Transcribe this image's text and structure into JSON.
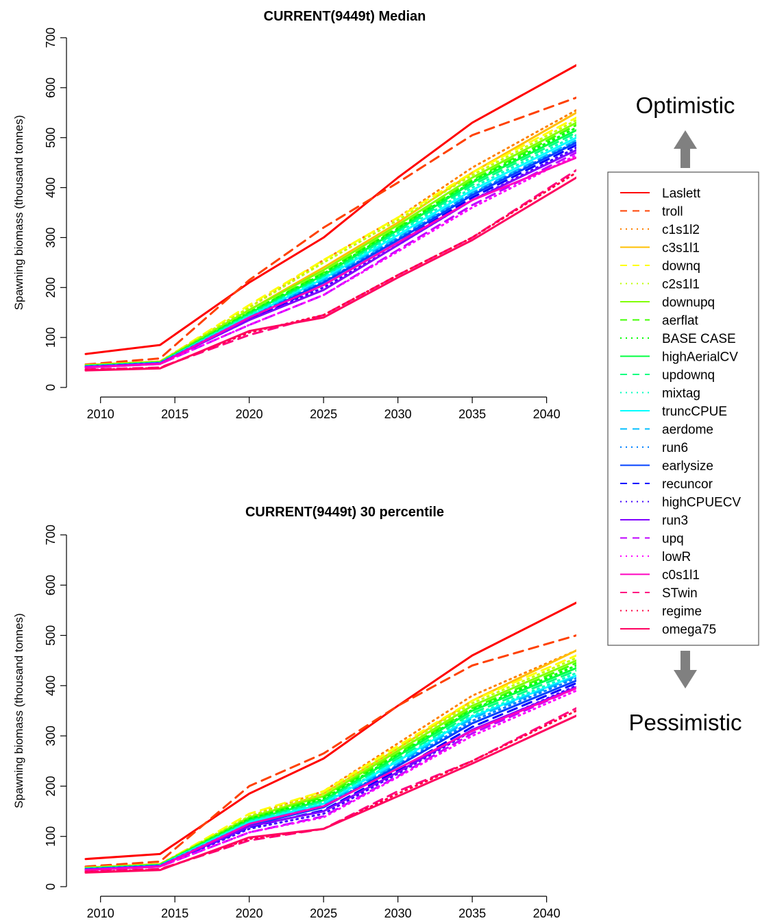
{
  "annotations": {
    "top": "Optimistic",
    "bottom": "Pessimistic"
  },
  "legend": {
    "position": "right",
    "entries": [
      {
        "name": "Laslett",
        "color": "#ff0000",
        "dash": "solid"
      },
      {
        "name": "troll",
        "color": "#ff4000",
        "dash": "dashed"
      },
      {
        "name": "c1s1l2",
        "color": "#ff8000",
        "dash": "dotted"
      },
      {
        "name": "c3s1l1",
        "color": "#ffbf00",
        "dash": "solid"
      },
      {
        "name": "downq",
        "color": "#ffff00",
        "dash": "dashed"
      },
      {
        "name": "c2s1l1",
        "color": "#bfff00",
        "dash": "dotted"
      },
      {
        "name": "downupq",
        "color": "#80ff00",
        "dash": "solid"
      },
      {
        "name": "aerflat",
        "color": "#40ff00",
        "dash": "dashed"
      },
      {
        "name": "BASE CASE",
        "color": "#00ff00",
        "dash": "dotted"
      },
      {
        "name": "highAerialCV",
        "color": "#00ff40",
        "dash": "solid"
      },
      {
        "name": "updownq",
        "color": "#00ff80",
        "dash": "dashed"
      },
      {
        "name": "mixtag",
        "color": "#00ffbf",
        "dash": "dotted"
      },
      {
        "name": "truncCPUE",
        "color": "#00ffff",
        "dash": "solid"
      },
      {
        "name": "aerdome",
        "color": "#00bfff",
        "dash": "dashed"
      },
      {
        "name": "run6",
        "color": "#0080ff",
        "dash": "dotted"
      },
      {
        "name": "earlysize",
        "color": "#0040ff",
        "dash": "solid"
      },
      {
        "name": "recuncor",
        "color": "#0000ff",
        "dash": "dashed"
      },
      {
        "name": "highCPUECV",
        "color": "#4000ff",
        "dash": "dotted"
      },
      {
        "name": "run3",
        "color": "#8000ff",
        "dash": "solid"
      },
      {
        "name": "upq",
        "color": "#bf00ff",
        "dash": "dashed"
      },
      {
        "name": "lowR",
        "color": "#ff00ff",
        "dash": "dotted"
      },
      {
        "name": "c0s1l1",
        "color": "#ff00bf",
        "dash": "solid"
      },
      {
        "name": "STwin",
        "color": "#ff0080",
        "dash": "dashed"
      },
      {
        "name": "regime",
        "color": "#ff0040",
        "dash": "dotted"
      },
      {
        "name": "omega75",
        "color": "#ff0060",
        "dash": "solid"
      }
    ]
  },
  "chart_data": [
    {
      "type": "line",
      "title": "CURRENT(9449t) Median",
      "xlabel": "",
      "ylabel": "Spawning biomass (thousand tonnes)",
      "xlim": [
        2009,
        2042
      ],
      "ylim": [
        0,
        700
      ],
      "xticks": [
        2010,
        2015,
        2020,
        2025,
        2030,
        2035,
        2040
      ],
      "yticks": [
        0,
        100,
        200,
        300,
        400,
        500,
        600,
        700
      ],
      "grid": false,
      "x": [
        2009,
        2014,
        2020,
        2025,
        2030,
        2035,
        2042
      ],
      "series": [
        {
          "name": "Laslett",
          "values": [
            67,
            85,
            210,
            300,
            420,
            530,
            645
          ]
        },
        {
          "name": "troll",
          "values": [
            46,
            58,
            215,
            320,
            410,
            505,
            580
          ]
        },
        {
          "name": "c1s1l2",
          "values": [
            45,
            52,
            160,
            255,
            340,
            440,
            555
          ]
        },
        {
          "name": "c3s1l1",
          "values": [
            45,
            52,
            155,
            240,
            330,
            430,
            550
          ]
        },
        {
          "name": "downq",
          "values": [
            44,
            51,
            165,
            255,
            340,
            430,
            540
          ]
        },
        {
          "name": "c2s1l1",
          "values": [
            44,
            51,
            160,
            250,
            335,
            425,
            535
          ]
        },
        {
          "name": "downupq",
          "values": [
            44,
            51,
            155,
            235,
            325,
            420,
            530
          ]
        },
        {
          "name": "aerflat",
          "values": [
            43,
            50,
            150,
            230,
            320,
            415,
            525
          ]
        },
        {
          "name": "BASE CASE",
          "values": [
            43,
            50,
            150,
            228,
            318,
            412,
            520
          ]
        },
        {
          "name": "highAerialCV",
          "values": [
            43,
            50,
            148,
            225,
            315,
            410,
            515
          ]
        },
        {
          "name": "updownq",
          "values": [
            43,
            50,
            145,
            222,
            312,
            405,
            510
          ]
        },
        {
          "name": "mixtag",
          "values": [
            42,
            49,
            145,
            220,
            310,
            400,
            505
          ]
        },
        {
          "name": "truncCPUE",
          "values": [
            42,
            49,
            142,
            218,
            305,
            395,
            500
          ]
        },
        {
          "name": "aerdome",
          "values": [
            42,
            49,
            140,
            215,
            300,
            390,
            495
          ]
        },
        {
          "name": "run6",
          "values": [
            42,
            49,
            140,
            212,
            298,
            388,
            492
          ]
        },
        {
          "name": "earlysize",
          "values": [
            41,
            48,
            138,
            210,
            295,
            385,
            490
          ]
        },
        {
          "name": "recuncor",
          "values": [
            41,
            48,
            135,
            205,
            290,
            380,
            485
          ]
        },
        {
          "name": "highCPUECV",
          "values": [
            41,
            48,
            135,
            200,
            285,
            375,
            480
          ]
        },
        {
          "name": "run3",
          "values": [
            41,
            48,
            135,
            195,
            285,
            375,
            475
          ]
        },
        {
          "name": "upq",
          "values": [
            40,
            47,
            125,
            185,
            275,
            365,
            470
          ]
        },
        {
          "name": "lowR",
          "values": [
            40,
            47,
            125,
            185,
            272,
            360,
            465
          ]
        },
        {
          "name": "c0s1l1",
          "values": [
            40,
            47,
            140,
            205,
            290,
            375,
            460
          ]
        },
        {
          "name": "STwin",
          "values": [
            36,
            40,
            105,
            145,
            225,
            300,
            435
          ]
        },
        {
          "name": "regime",
          "values": [
            35,
            39,
            110,
            145,
            225,
            300,
            430
          ]
        },
        {
          "name": "omega75",
          "values": [
            34,
            38,
            113,
            140,
            220,
            295,
            420
          ]
        }
      ]
    },
    {
      "type": "line",
      "title": "CURRENT(9449t) 30 percentile",
      "xlabel": "",
      "ylabel": "Spawning biomass (thousand tonnes)",
      "xlim": [
        2009,
        2042
      ],
      "ylim": [
        0,
        700
      ],
      "xticks": [
        2010,
        2015,
        2020,
        2025,
        2030,
        2035,
        2040
      ],
      "yticks": [
        0,
        100,
        200,
        300,
        400,
        500,
        600,
        700
      ],
      "grid": false,
      "x": [
        2009,
        2014,
        2020,
        2025,
        2030,
        2035,
        2042
      ],
      "series": [
        {
          "name": "Laslett",
          "values": [
            55,
            65,
            185,
            255,
            360,
            460,
            565
          ]
        },
        {
          "name": "troll",
          "values": [
            40,
            50,
            200,
            265,
            360,
            440,
            500
          ]
        },
        {
          "name": "c1s1l2",
          "values": [
            38,
            45,
            140,
            190,
            285,
            380,
            470
          ]
        },
        {
          "name": "c3s1l1",
          "values": [
            38,
            45,
            135,
            185,
            275,
            370,
            470
          ]
        },
        {
          "name": "downq",
          "values": [
            37,
            44,
            145,
            190,
            280,
            370,
            460
          ]
        },
        {
          "name": "c2s1l1",
          "values": [
            37,
            44,
            140,
            185,
            275,
            365,
            455
          ]
        },
        {
          "name": "downupq",
          "values": [
            37,
            44,
            138,
            180,
            270,
            360,
            450
          ]
        },
        {
          "name": "aerflat",
          "values": [
            36,
            43,
            135,
            178,
            265,
            355,
            445
          ]
        },
        {
          "name": "BASE CASE",
          "values": [
            36,
            43,
            135,
            175,
            262,
            352,
            440
          ]
        },
        {
          "name": "highAerialCV",
          "values": [
            36,
            43,
            132,
            172,
            260,
            350,
            435
          ]
        },
        {
          "name": "updownq",
          "values": [
            36,
            43,
            130,
            170,
            255,
            345,
            430
          ]
        },
        {
          "name": "mixtag",
          "values": [
            35,
            42,
            130,
            168,
            252,
            340,
            425
          ]
        },
        {
          "name": "truncCPUE",
          "values": [
            35,
            42,
            128,
            165,
            250,
            338,
            420
          ]
        },
        {
          "name": "aerdome",
          "values": [
            35,
            42,
            125,
            162,
            245,
            335,
            418
          ]
        },
        {
          "name": "run6",
          "values": [
            35,
            42,
            125,
            160,
            242,
            330,
            415
          ]
        },
        {
          "name": "earlysize",
          "values": [
            34,
            41,
            122,
            158,
            240,
            325,
            410
          ]
        },
        {
          "name": "recuncor",
          "values": [
            34,
            41,
            118,
            152,
            232,
            318,
            405
          ]
        },
        {
          "name": "highCPUECV",
          "values": [
            34,
            41,
            115,
            145,
            225,
            310,
            400
          ]
        },
        {
          "name": "run3",
          "values": [
            34,
            41,
            120,
            150,
            228,
            312,
            397
          ]
        },
        {
          "name": "upq",
          "values": [
            33,
            40,
            108,
            140,
            220,
            305,
            395
          ]
        },
        {
          "name": "lowR",
          "values": [
            33,
            40,
            108,
            138,
            218,
            300,
            390
          ]
        },
        {
          "name": "c0s1l1",
          "values": [
            33,
            40,
            125,
            160,
            235,
            310,
            395
          ]
        },
        {
          "name": "STwin",
          "values": [
            30,
            35,
            92,
            115,
            190,
            250,
            355
          ]
        },
        {
          "name": "regime",
          "values": [
            29,
            34,
            95,
            115,
            185,
            250,
            350
          ]
        },
        {
          "name": "omega75",
          "values": [
            28,
            33,
            98,
            115,
            180,
            245,
            340
          ]
        }
      ]
    }
  ]
}
